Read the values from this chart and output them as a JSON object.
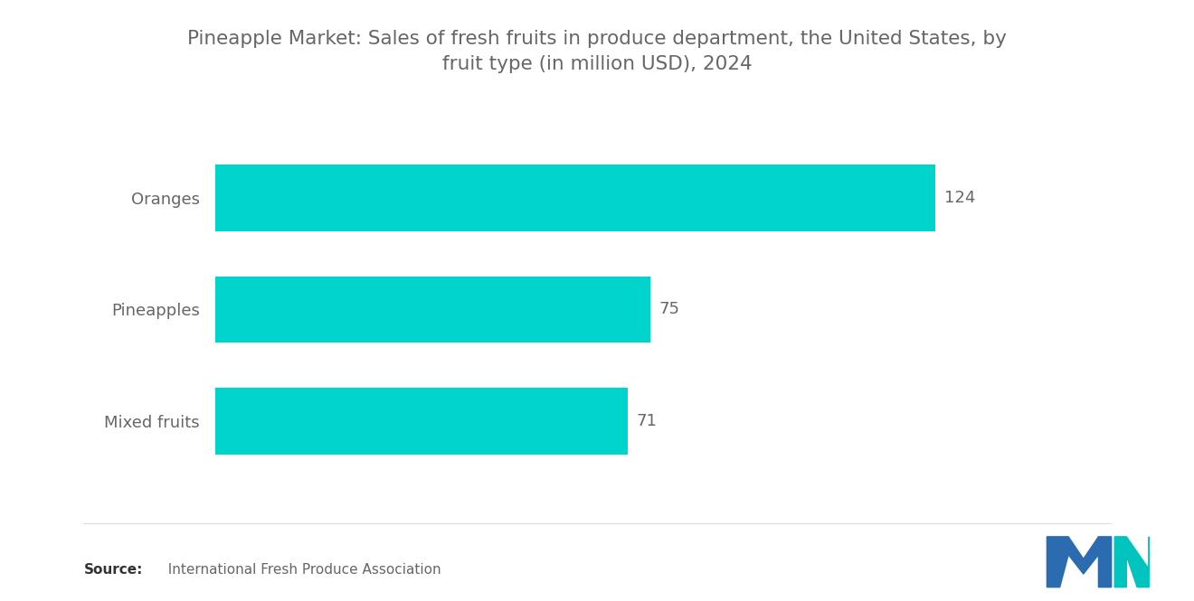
{
  "title_line1": "Pineapple Market: Sales of fresh fruits in produce department, the United States, by",
  "title_line2": "fruit type (in million USD), 2024",
  "categories": [
    "Mixed fruits",
    "Pineapples",
    "Oranges"
  ],
  "values": [
    71,
    75,
    124
  ],
  "bar_color": "#00D4CC",
  "value_labels": [
    "71",
    "75",
    "124"
  ],
  "background_color": "#FFFFFF",
  "title_color": "#666666",
  "label_color": "#666666",
  "value_color": "#666666",
  "source_bold": "Source:",
  "source_rest": "  International Fresh Produce Association",
  "xlim": [
    0,
    148
  ],
  "bar_height": 0.6,
  "title_fontsize": 15.5,
  "label_fontsize": 13,
  "value_fontsize": 13,
  "source_fontsize": 11
}
